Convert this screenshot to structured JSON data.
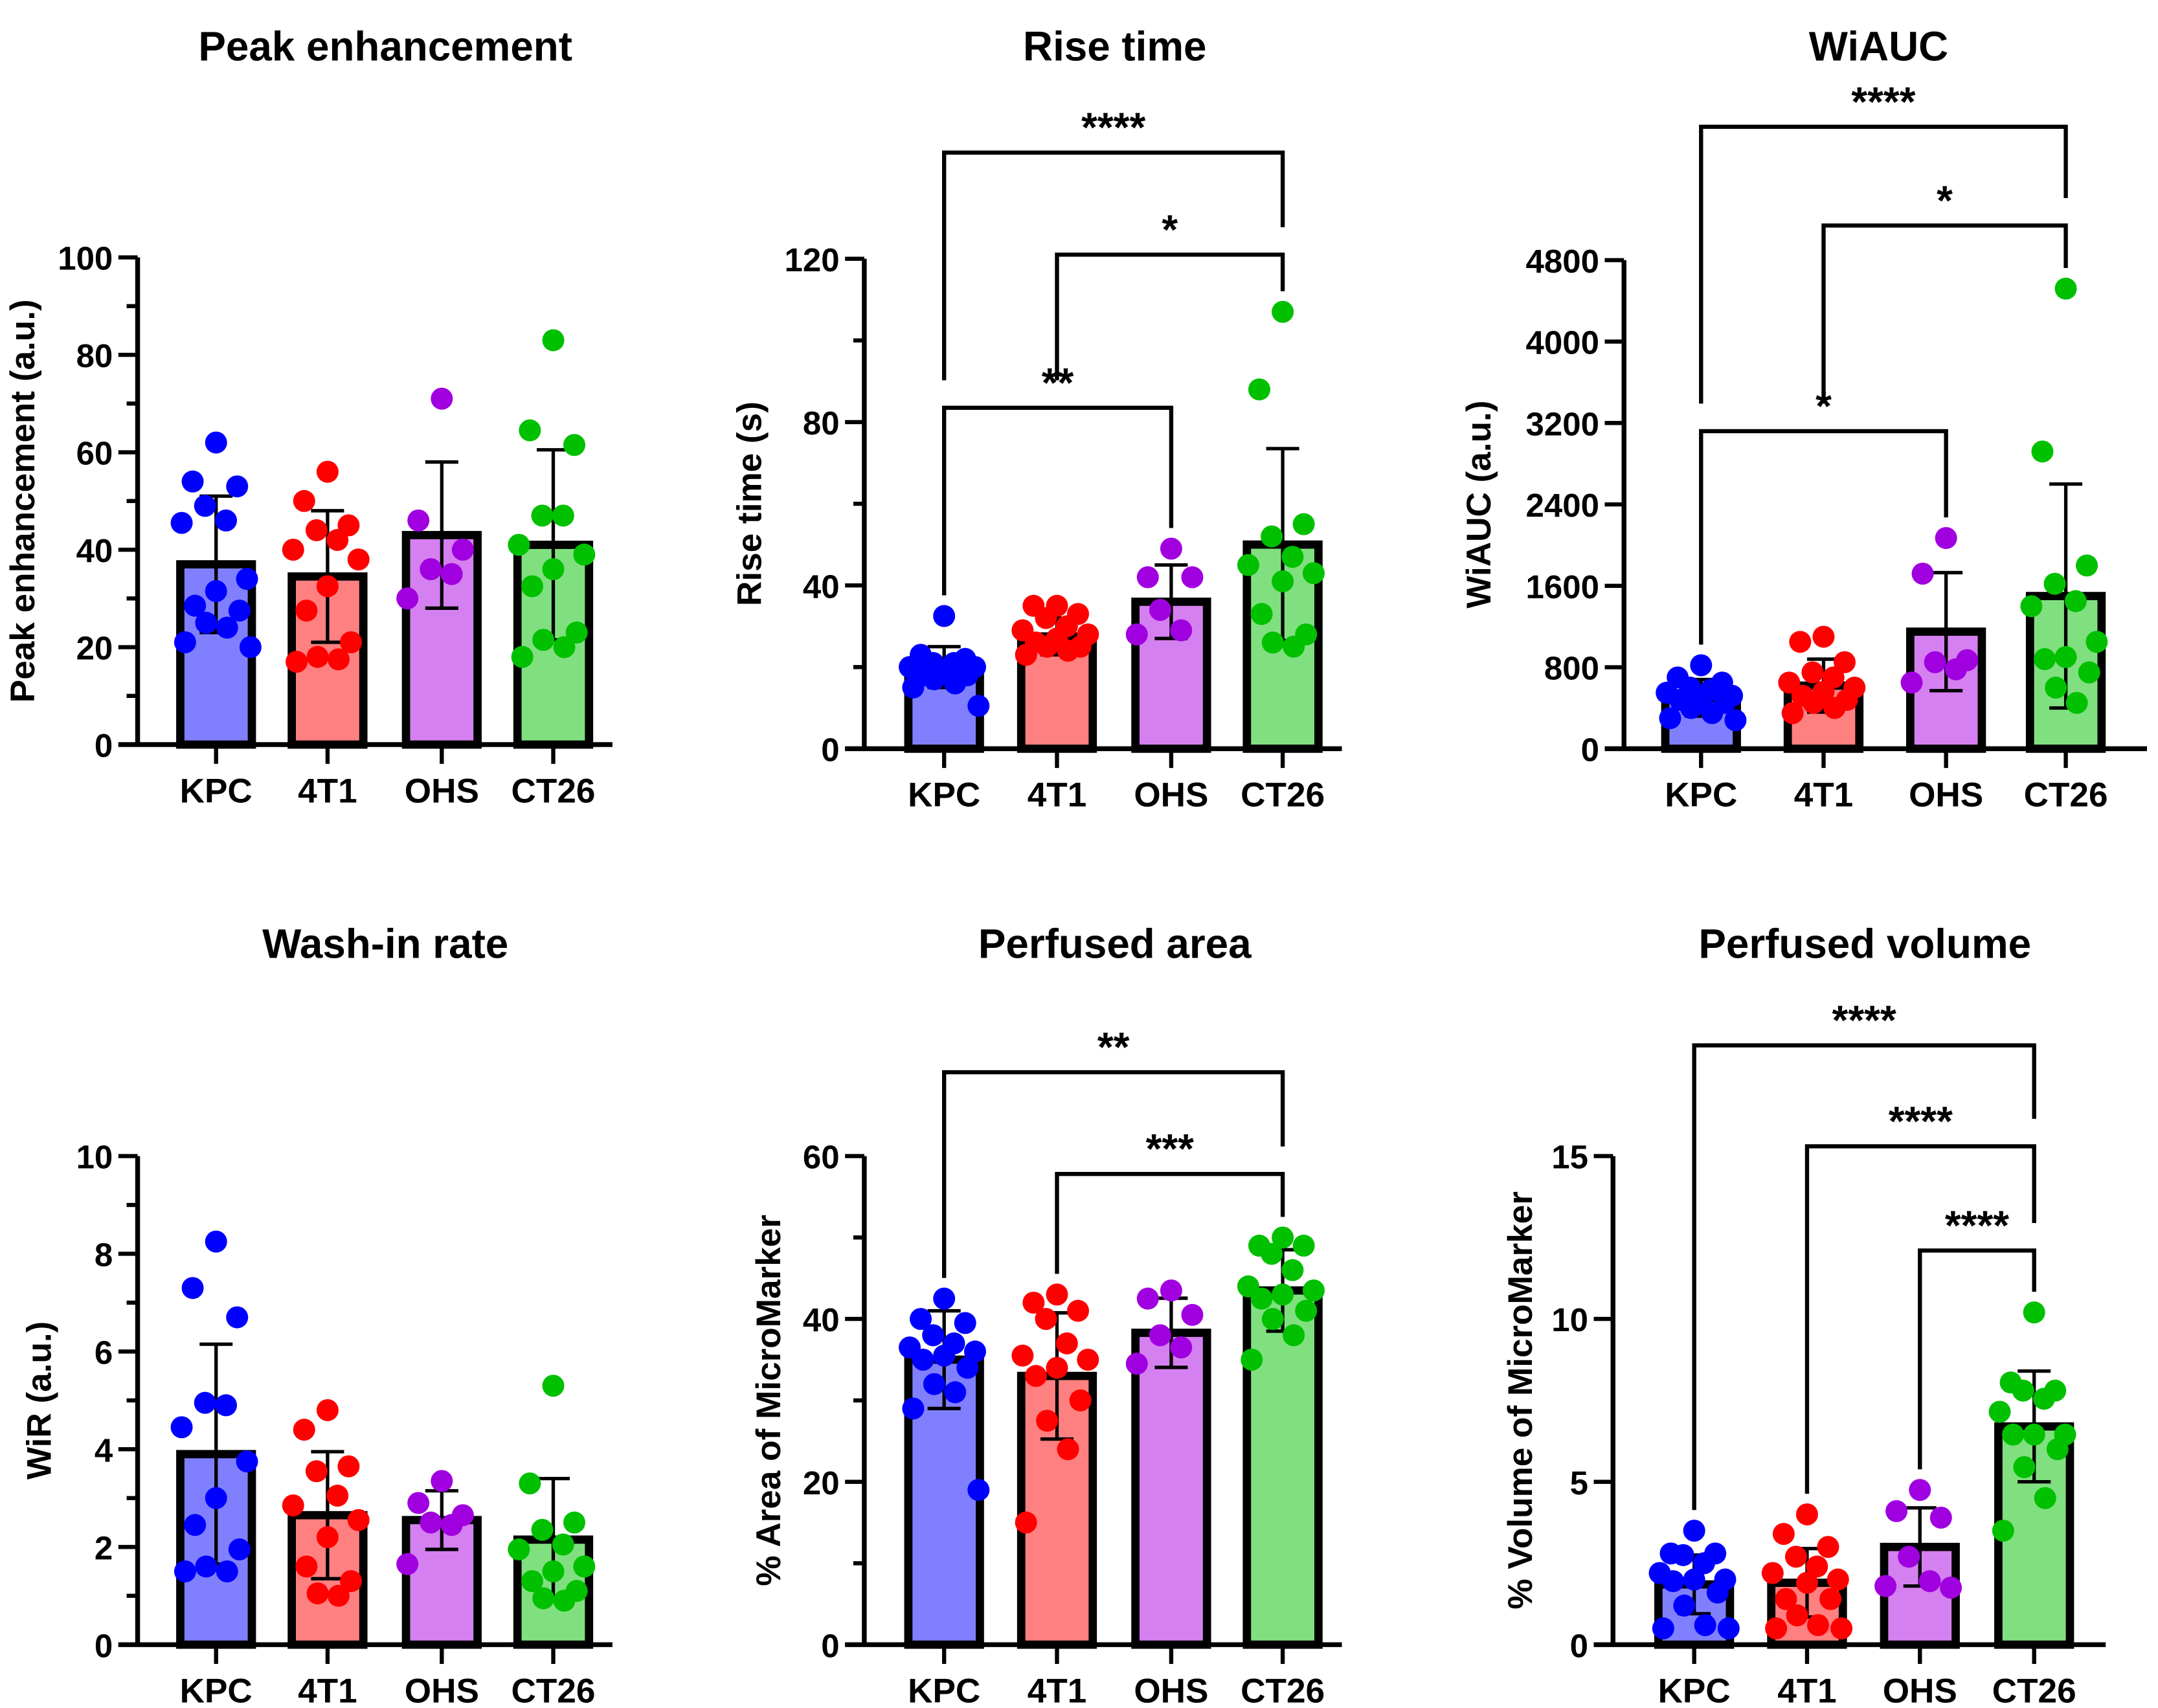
{
  "colors": {
    "KPC": {
      "point": "#0000ff",
      "bar": "#8080ff"
    },
    "4T1": {
      "point": "#ff0000",
      "bar": "#ff8080"
    },
    "OHS": {
      "point": "#a000e0",
      "bar": "#d580f0"
    },
    "CT26": {
      "point": "#00c000",
      "bar": "#80e080"
    }
  },
  "chart_data": [
    {
      "type": "bar",
      "title": "Peak enhancement",
      "xlabel": "",
      "ylabel": "Peak enhancement (a.u.)",
      "categories": [
        "KPC",
        "4T1",
        "OHS",
        "CT26"
      ],
      "ylim": [
        0,
        100
      ],
      "yticks": [
        0,
        20,
        40,
        60,
        80,
        100
      ],
      "minor_step": 10,
      "series": [
        {
          "category": "KPC",
          "mean": 37,
          "sd": 14,
          "points": [
            62,
            54,
            53,
            49,
            46,
            45.5,
            34,
            31.5,
            28.5,
            27.5,
            25,
            24,
            21,
            20
          ]
        },
        {
          "category": "4T1",
          "mean": 34.5,
          "sd": 13.5,
          "points": [
            56,
            50,
            45,
            44,
            42,
            40,
            38,
            32.5,
            27.5,
            21,
            18,
            17.5,
            17
          ]
        },
        {
          "category": "OHS",
          "mean": 43,
          "sd": 15,
          "points": [
            71,
            46,
            40,
            36,
            35,
            30
          ]
        },
        {
          "category": "CT26",
          "mean": 41,
          "sd": 19.5,
          "points": [
            83,
            64.5,
            61.5,
            47,
            47,
            41,
            39,
            36,
            32.5,
            23,
            21.5,
            20,
            18
          ]
        }
      ],
      "significance": []
    },
    {
      "type": "bar",
      "title": "Rise time",
      "xlabel": "",
      "ylabel": "Rise time (s)",
      "categories": [
        "KPC",
        "4T1",
        "OHS",
        "CT26"
      ],
      "ylim": [
        0,
        120
      ],
      "yticks": [
        0,
        40,
        80,
        120
      ],
      "minor_step": 20,
      "series": [
        {
          "category": "KPC",
          "mean": 20,
          "sd": 5,
          "points": [
            32.5,
            23,
            22,
            21,
            21,
            20,
            20,
            19,
            18,
            18,
            17,
            16,
            15,
            10.5
          ]
        },
        {
          "category": "4T1",
          "mean": 27.5,
          "sd": 4.5,
          "points": [
            35,
            35,
            33,
            32,
            30,
            29,
            28,
            27,
            26,
            25,
            25,
            24,
            23
          ]
        },
        {
          "category": "OHS",
          "mean": 36,
          "sd": 9,
          "points": [
            49,
            42,
            42,
            34,
            29,
            28
          ]
        },
        {
          "category": "CT26",
          "mean": 50,
          "sd": 23.5,
          "points": [
            107,
            88,
            55,
            52,
            47,
            45,
            43,
            41,
            33,
            28,
            26,
            25
          ]
        }
      ],
      "significance": [
        {
          "from": "KPC",
          "to": "CT26",
          "y": 146,
          "label": "****"
        },
        {
          "from": "4T1",
          "to": "CT26",
          "y": 121,
          "label": "*"
        },
        {
          "from": "KPC",
          "to": "OHS",
          "y": 83.5,
          "label": "**"
        }
      ]
    },
    {
      "type": "bar",
      "title": "WiAUC",
      "xlabel": "",
      "ylabel": "WiAUC (a.u.)",
      "categories": [
        "KPC",
        "4T1",
        "OHS",
        "CT26"
      ],
      "ylim": [
        0,
        4800
      ],
      "yticks": [
        0,
        800,
        1600,
        2400,
        3200,
        4000,
        4800
      ],
      "minor_step": null,
      "series": [
        {
          "category": "KPC",
          "mean": 500,
          "sd": 180,
          "points": [
            820,
            700,
            650,
            600,
            580,
            550,
            520,
            500,
            480,
            450,
            400,
            350,
            300,
            280
          ]
        },
        {
          "category": "4T1",
          "mean": 620,
          "sd": 260,
          "points": [
            1100,
            1050,
            850,
            750,
            700,
            650,
            600,
            560,
            520,
            480,
            450,
            400,
            350
          ]
        },
        {
          "category": "OHS",
          "mean": 1150,
          "sd": 580,
          "points": [
            2070,
            1720,
            870,
            850,
            780,
            650
          ]
        },
        {
          "category": "CT26",
          "mean": 1500,
          "sd": 1100,
          "points": [
            4520,
            2920,
            1800,
            1620,
            1450,
            1400,
            1050,
            900,
            880,
            750,
            600,
            450
          ]
        }
      ],
      "significance": [
        {
          "from": "KPC",
          "to": "CT26",
          "y": 6110,
          "label": "****"
        },
        {
          "from": "4T1",
          "to": "CT26",
          "y": 5140,
          "label": "*"
        },
        {
          "from": "KPC",
          "to": "OHS",
          "y": 3120,
          "label": "*"
        }
      ]
    },
    {
      "type": "bar",
      "title": "Wash-in rate",
      "xlabel": "",
      "ylabel": "WiR (a.u.)",
      "categories": [
        "KPC",
        "4T1",
        "OHS",
        "CT26"
      ],
      "ylim": [
        0,
        10
      ],
      "yticks": [
        0,
        2,
        4,
        6,
        8,
        10
      ],
      "minor_step": 1,
      "series": [
        {
          "category": "KPC",
          "mean": 3.9,
          "sd": 2.25,
          "points": [
            8.25,
            7.3,
            6.7,
            4.95,
            4.9,
            4.45,
            3.75,
            3,
            2.45,
            1.95,
            1.6,
            1.5,
            1.5
          ]
        },
        {
          "category": "4T1",
          "mean": 2.65,
          "sd": 1.3,
          "points": [
            4.8,
            4.4,
            3.65,
            3.55,
            3.05,
            2.85,
            2.55,
            2.2,
            1.6,
            1.3,
            1.05,
            1.0
          ]
        },
        {
          "category": "OHS",
          "mean": 2.55,
          "sd": 0.6,
          "points": [
            3.35,
            2.9,
            2.65,
            2.5,
            2.45,
            1.65
          ]
        },
        {
          "category": "CT26",
          "mean": 2.15,
          "sd": 1.25,
          "points": [
            5.3,
            3.3,
            2.5,
            2.35,
            2.05,
            1.95,
            1.6,
            1.5,
            1.3,
            1.1,
            0.95,
            0.9
          ]
        }
      ],
      "significance": []
    },
    {
      "type": "bar",
      "title": "Perfused area",
      "xlabel": "",
      "ylabel": "% Area of MicroMarker",
      "categories": [
        "KPC",
        "4T1",
        "OHS",
        "CT26"
      ],
      "ylim": [
        0,
        60
      ],
      "yticks": [
        0,
        20,
        40,
        60
      ],
      "minor_step": 10,
      "series": [
        {
          "category": "KPC",
          "mean": 35,
          "sd": 6,
          "points": [
            42.5,
            40,
            39.5,
            38,
            37,
            36.5,
            36,
            35.5,
            35,
            34,
            32,
            31,
            29,
            19
          ]
        },
        {
          "category": "4T1",
          "mean": 33,
          "sd": 7.75,
          "points": [
            43,
            42,
            41,
            40,
            37,
            35.5,
            35,
            34,
            33,
            30,
            27.5,
            24,
            15
          ]
        },
        {
          "category": "OHS",
          "mean": 38.3,
          "sd": 4.25,
          "points": [
            43.5,
            42.5,
            40.5,
            38,
            36.5,
            34.5
          ]
        },
        {
          "category": "CT26",
          "mean": 43.5,
          "sd": 5,
          "points": [
            50,
            49,
            49,
            48,
            46,
            44,
            43.5,
            43,
            42.5,
            41,
            40,
            38,
            35
          ]
        }
      ],
      "significance": [
        {
          "from": "KPC",
          "to": "CT26",
          "y": 70.3,
          "label": "**"
        },
        {
          "from": "4T1",
          "to": "CT26",
          "y": 57.8,
          "label": "***"
        }
      ]
    },
    {
      "type": "bar",
      "title": "Perfused volume",
      "xlabel": "",
      "ylabel": "% Volume of MicroMarker",
      "categories": [
        "KPC",
        "4T1",
        "OHS",
        "CT26"
      ],
      "ylim": [
        0,
        15
      ],
      "yticks": [
        0,
        5,
        10,
        15
      ],
      "minor_step": null,
      "series": [
        {
          "category": "KPC",
          "mean": 1.85,
          "sd": 0.9,
          "points": [
            3.5,
            2.8,
            2.8,
            2.75,
            2.5,
            2.2,
            2.0,
            2.0,
            1.95,
            1.6,
            1.2,
            0.6,
            0.5,
            0.5
          ]
        },
        {
          "category": "4T1",
          "mean": 1.9,
          "sd": 1.05,
          "points": [
            4.0,
            3.4,
            3.0,
            2.7,
            2.4,
            2.2,
            2.0,
            1.9,
            1.4,
            1.4,
            0.9,
            0.6,
            0.5,
            0.5
          ]
        },
        {
          "category": "OHS",
          "mean": 3.0,
          "sd": 1.2,
          "points": [
            4.75,
            4.1,
            3.9,
            2.7,
            1.95,
            1.8,
            1.75
          ]
        },
        {
          "category": "CT26",
          "mean": 6.7,
          "sd": 1.7,
          "points": [
            10.2,
            8.05,
            7.8,
            7.8,
            7.55,
            7.15,
            6.45,
            6.45,
            6.45,
            6.0,
            5.45,
            4.5,
            3.5
          ]
        }
      ],
      "significance": [
        {
          "from": "KPC",
          "to": "CT26",
          "y": 18.4,
          "label": "****"
        },
        {
          "from": "4T1",
          "to": "CT26",
          "y": 15.3,
          "label": "****"
        },
        {
          "from": "OHS",
          "to": "CT26",
          "y": 12.1,
          "label": "****"
        }
      ]
    }
  ]
}
